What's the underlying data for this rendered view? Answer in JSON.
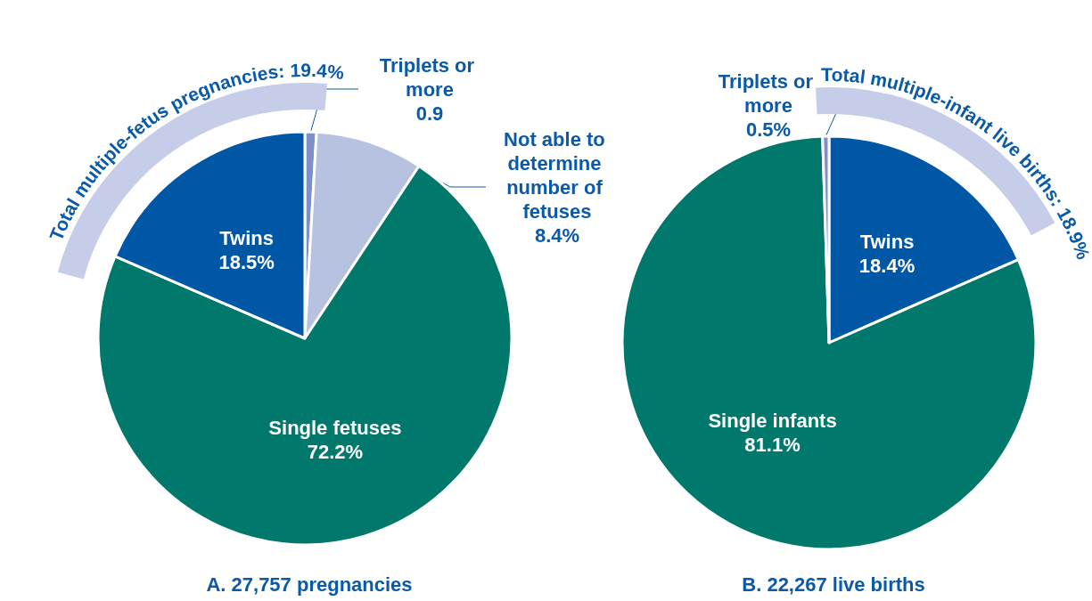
{
  "chart_data": [
    {
      "type": "pie",
      "title": "A. 27,757 pregnancies",
      "annotations": [
        "Total multiple-fetus pregnancies: 19.4%"
      ],
      "categories": [
        "Triplets or more",
        "Not able to determine number of fetuses",
        "Single fetuses",
        "Twins"
      ],
      "values": [
        0.9,
        8.4,
        72.2,
        18.5
      ],
      "value_labels": [
        "0.9",
        "8.4%",
        "72.2%",
        "18.5%"
      ],
      "colors": [
        "#7f90c9",
        "#b7c1e0",
        "#00786b",
        "#0057a6"
      ],
      "legend": false
    },
    {
      "type": "pie",
      "title": "B. 22,267 live births",
      "annotations": [
        "Total multiple-infant live births: 18.9%"
      ],
      "categories": [
        "Twins",
        "Single infants",
        "Triplets or more"
      ],
      "values": [
        18.4,
        81.1,
        0.5
      ],
      "value_labels": [
        "18.4%",
        "81.1%",
        "0.5%"
      ],
      "colors": [
        "#0057a6",
        "#00786b",
        "#7f90c9"
      ],
      "legend": false
    }
  ]
}
